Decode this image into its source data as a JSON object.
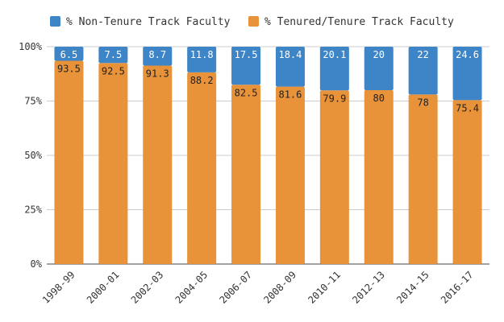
{
  "chart_data": {
    "type": "bar",
    "stacked": true,
    "categories": [
      "1998-99",
      "2000-01",
      "2002-03",
      "2004-05",
      "2006-07",
      "2008-09",
      "2010-11",
      "2012-13",
      "2014-15",
      "2016-17"
    ],
    "series": [
      {
        "name": "% Tenured/Tenure Track Faculty",
        "color": "#e8933a",
        "label_color": "#222222",
        "values": [
          93.5,
          92.5,
          91.3,
          88.2,
          82.5,
          81.6,
          79.9,
          80,
          78,
          75.4
        ],
        "labels": [
          "93.5",
          "92.5",
          "91.3",
          "88.2",
          "82.5",
          "81.6",
          "79.9",
          "80",
          "78",
          "75.4"
        ]
      },
      {
        "name": "% Non-Tenure Track Faculty",
        "color": "#3d85c6",
        "label_color": "#ffffff",
        "values": [
          6.5,
          7.5,
          8.7,
          11.8,
          17.5,
          18.4,
          20.1,
          20,
          22,
          24.6
        ],
        "labels": [
          "6.5",
          "7.5",
          "8.7",
          "11.8",
          "17.5",
          "18.4",
          "20.1",
          "20",
          "22",
          "24.6"
        ]
      }
    ],
    "legend_order": [
      1,
      0
    ],
    "legend_position": "top",
    "ylim": [
      0,
      100
    ],
    "yticks": [
      0,
      25,
      50,
      75,
      100
    ],
    "ytick_labels": [
      "0%",
      "25%",
      "50%",
      "75%",
      "100%"
    ],
    "grid": true,
    "title": "",
    "xlabel": "",
    "ylabel": ""
  }
}
